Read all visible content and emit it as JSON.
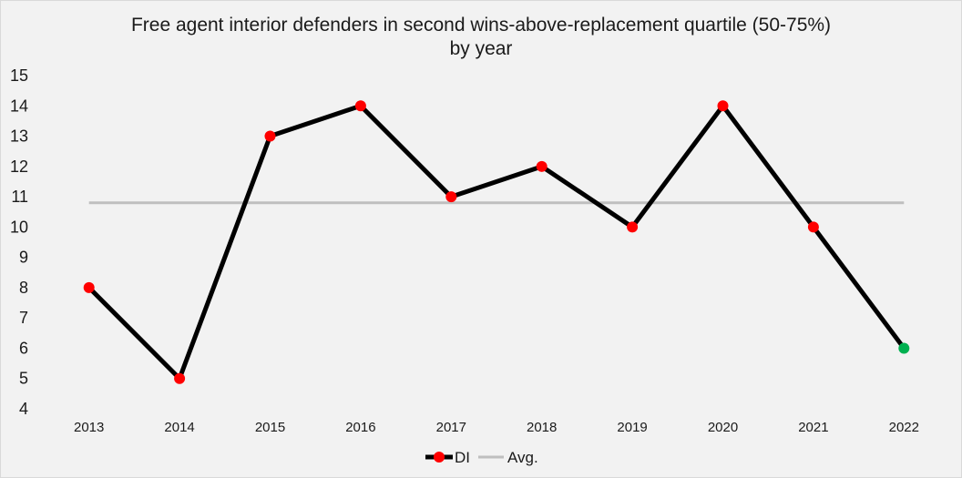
{
  "chart_data": {
    "type": "line",
    "title": "Free agent interior defenders in second wins-above-replacement quartile (50-75%)",
    "subtitle": "by year",
    "xlabel": "",
    "ylabel": "",
    "categories": [
      "2013",
      "2014",
      "2015",
      "2016",
      "2017",
      "2018",
      "2019",
      "2020",
      "2021",
      "2022"
    ],
    "ylim": [
      4,
      15
    ],
    "yticks": [
      "4",
      "5",
      "6",
      "7",
      "8",
      "9",
      "10",
      "11",
      "12",
      "13",
      "14",
      "15"
    ],
    "grid": false,
    "legend_position": "bottom",
    "series": [
      {
        "name": "DI",
        "values": [
          8,
          5,
          13,
          14,
          11,
          12,
          10,
          14,
          10,
          6
        ],
        "line_color": "#000000",
        "marker_color": "#ff0000",
        "highlight_index": 9,
        "highlight_color": "#00b050"
      },
      {
        "name": "Avg.",
        "values": [
          10.8,
          10.8,
          10.8,
          10.8,
          10.8,
          10.8,
          10.8,
          10.8,
          10.8,
          10.8
        ],
        "line_color": "#bfbfbf"
      }
    ]
  }
}
